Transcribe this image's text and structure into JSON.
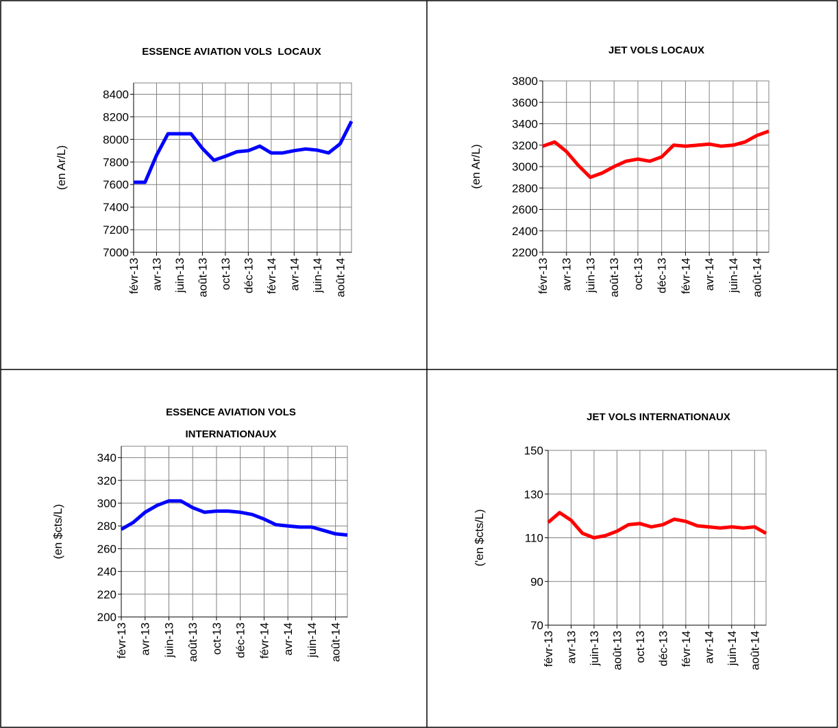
{
  "chart_data": [
    {
      "type": "line",
      "title": "ESSENCE AVIATION VOLS  LOCAUX",
      "ylabel": "(en Ar/L)",
      "color": "#0000ff",
      "grid": true,
      "categories": [
        "févr-13",
        null,
        "avr-13",
        null,
        "juin-13",
        null,
        "août-13",
        null,
        "oct-13",
        null,
        "déc-13",
        null,
        "févr-14",
        null,
        "avr-14",
        null,
        "juin-14",
        null,
        "août-14",
        null
      ],
      "values": [
        7620,
        7620,
        7860,
        8050,
        8050,
        8050,
        7920,
        7815,
        7850,
        7890,
        7900,
        7940,
        7880,
        7880,
        7900,
        7915,
        7905,
        7880,
        7960,
        8160
      ],
      "ylim": [
        7000,
        8500
      ],
      "yticks": [
        7000,
        7200,
        7400,
        7600,
        7800,
        8000,
        8200,
        8400
      ]
    },
    {
      "type": "line",
      "title": "JET VOLS LOCAUX",
      "ylabel": "(en Ar/L)",
      "color": "#ff0000",
      "grid": true,
      "categories": [
        "févr-13",
        null,
        "avr-13",
        null,
        "juin-13",
        null,
        "août-13",
        null,
        "oct-13",
        null,
        "déc-13",
        null,
        "févr-14",
        null,
        "avr-14",
        null,
        "juin-14",
        null,
        "août-14",
        null
      ],
      "values": [
        3190,
        3230,
        3140,
        3010,
        2900,
        2940,
        3000,
        3050,
        3070,
        3050,
        3090,
        3200,
        3190,
        3200,
        3210,
        3190,
        3200,
        3230,
        3290,
        3330
      ],
      "ylim": [
        2200,
        3800
      ],
      "yticks": [
        2200,
        2400,
        2600,
        2800,
        3000,
        3200,
        3400,
        3600,
        3800
      ]
    },
    {
      "type": "line",
      "title": [
        "ESSENCE AVIATION VOLS",
        "INTERNATIONAUX"
      ],
      "ylabel": "(en $cts/L)",
      "color": "#0000ff",
      "grid": true,
      "categories": [
        "févr-13",
        null,
        "avr-13",
        null,
        "juin-13",
        null,
        "août-13",
        null,
        "oct-13",
        null,
        "déc-13",
        null,
        "févr-14",
        null,
        "avr-14",
        null,
        "juin-14",
        null,
        "août-14",
        null
      ],
      "values": [
        277,
        283,
        292,
        298,
        302,
        302,
        296,
        292,
        293,
        293,
        292,
        290,
        286,
        281,
        280,
        279,
        279,
        276,
        273,
        272
      ],
      "ylim": [
        200,
        350
      ],
      "yticks": [
        200,
        220,
        240,
        260,
        280,
        300,
        320,
        340
      ]
    },
    {
      "type": "line",
      "title": "JET VOLS INTERNATIONAUX",
      "ylabel": "('en $cts/L)",
      "color": "#ff0000",
      "grid": true,
      "categories": [
        "févr-13",
        null,
        "avr-13",
        null,
        "juin-13",
        null,
        "août-13",
        null,
        "oct-13",
        null,
        "déc-13",
        null,
        "févr-14",
        null,
        "avr-14",
        null,
        "juin-14",
        null,
        "août-14",
        null
      ],
      "values": [
        117,
        121.5,
        118,
        112,
        110,
        111,
        113,
        116,
        116.5,
        115,
        116,
        118.5,
        117.5,
        115.5,
        115,
        114.5,
        115,
        114.5,
        115,
        112
      ],
      "ylim": [
        70,
        150
      ],
      "yticks": [
        70,
        90,
        110,
        130,
        150
      ]
    }
  ]
}
